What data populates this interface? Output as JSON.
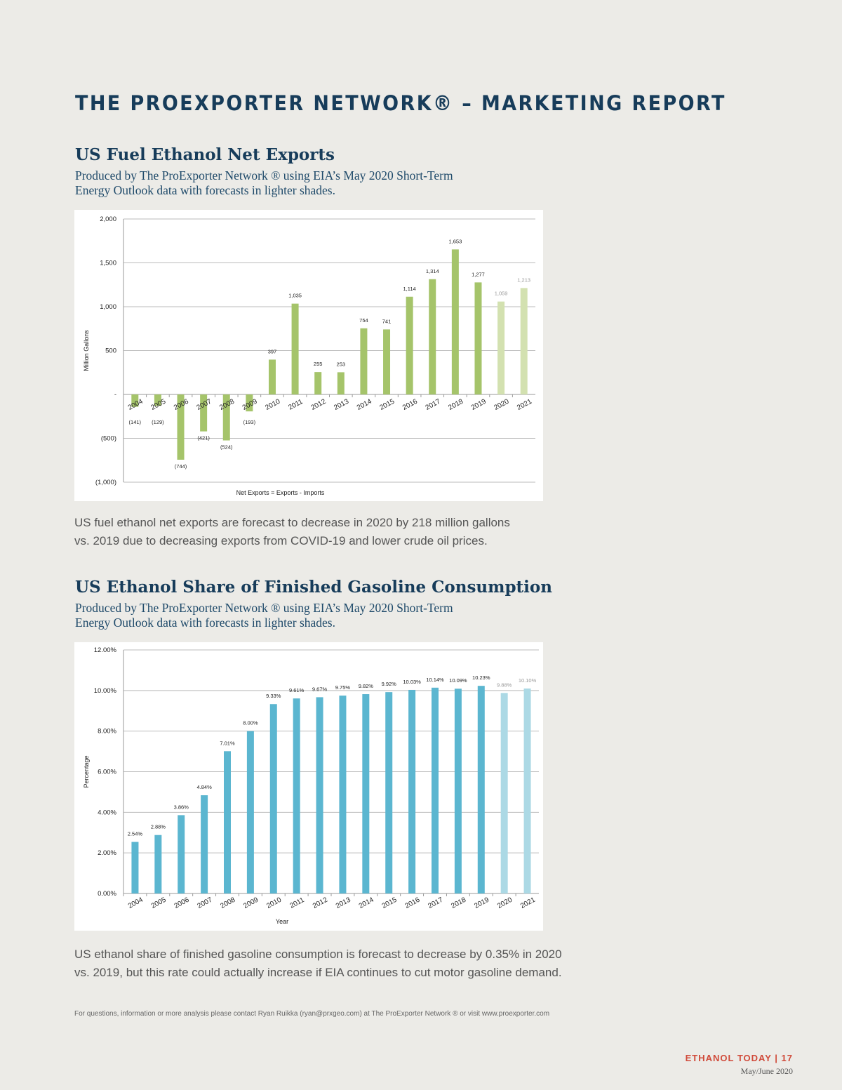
{
  "header": {
    "title": "THE PROEXPORTER NETWORK® – MARKETING REPORT"
  },
  "section1": {
    "title": "US Fuel Ethanol Net Exports",
    "subtitle_line1": "Produced by The ProExporter Network ® using EIA’s May 2020 Short-Term",
    "subtitle_line2": "Energy Outlook data with forecasts in lighter shades.",
    "note_line1": "US fuel ethanol net exports are forecast to decrease in 2020 by 218 million gallons",
    "note_line2": "vs. 2019 due to decreasing exports from COVID-19 and lower crude oil prices."
  },
  "section2": {
    "title": "US Ethanol Share of Finished Gasoline Consumption",
    "subtitle_line1": "Produced by The ProExporter Network ® using EIA’s May 2020 Short-Term",
    "subtitle_line2": "Energy Outlook data with forecasts in lighter shades.",
    "note_line1": "US ethanol share of finished gasoline consumption is forecast to decrease by 0.35% in 2020",
    "note_line2": "vs. 2019, but this rate could actually increase if EIA continues to cut motor gasoline demand."
  },
  "footer": {
    "contact": "For questions, information or more analysis please contact Ryan Ruikka (ryan@prxgeo.com) at The ProExporter Network ® or visit www.proexporter.com",
    "brand": "ETHANOL TODAY | 17",
    "issue": "May/June 2020"
  },
  "colors": {
    "green": "#a5c46a",
    "green_forecast": "#d3e1b0",
    "blue": "#5bb6d0",
    "blue_forecast": "#acd9e5",
    "title": "#173c5a",
    "brand": "#d04a3a"
  },
  "chart_data": [
    {
      "type": "bar",
      "title": "US Fuel Ethanol Net Exports",
      "xlabel": "Net Exports = Exports - Imports",
      "ylabel": "Million Gallons",
      "ylim": [
        -1000,
        2000
      ],
      "yticks": [
        2000,
        1500,
        1000,
        500,
        0,
        -500,
        -1000
      ],
      "ytick_labels": [
        "2,000",
        "1,500",
        "1,000",
        "500",
        "-",
        "(500)",
        "(1,000)"
      ],
      "categories": [
        "2004",
        "2005",
        "2006",
        "2007",
        "2008",
        "2009",
        "2010",
        "2011",
        "2012",
        "2013",
        "2014",
        "2015",
        "2016",
        "2017",
        "2018",
        "2019",
        "2020",
        "2021"
      ],
      "values": [
        -141,
        -129,
        -744,
        -421,
        -524,
        -193,
        397,
        1035,
        255,
        253,
        754,
        741,
        1114,
        1314,
        1653,
        1277,
        1059,
        1213
      ],
      "labels": [
        "(141)",
        "(129)",
        "(744)",
        "(421)",
        "(524)",
        "(193)",
        "397",
        "1,035",
        "255",
        "253",
        "754",
        "741",
        "1,114",
        "1,314",
        "1,653",
        "1,277",
        "1,059",
        "1,213"
      ],
      "forecast": [
        "2020",
        "2021"
      ],
      "grid": true
    },
    {
      "type": "bar",
      "title": "US Ethanol Share of Finished Gasoline Consumption",
      "xlabel": "Year",
      "ylabel": "Percentage",
      "ylim": [
        0,
        12
      ],
      "yticks": [
        12,
        10,
        8,
        6,
        4,
        2,
        0
      ],
      "ytick_labels": [
        "12.00%",
        "10.00%",
        "8.00%",
        "6.00%",
        "4.00%",
        "2.00%",
        "0.00%"
      ],
      "categories": [
        "2004",
        "2005",
        "2006",
        "2007",
        "2008",
        "2009",
        "2010",
        "2011",
        "2012",
        "2013",
        "2014",
        "2015",
        "2016",
        "2017",
        "2018",
        "2019",
        "2020",
        "2021"
      ],
      "values": [
        2.54,
        2.88,
        3.86,
        4.84,
        7.01,
        8.0,
        9.33,
        9.61,
        9.67,
        9.75,
        9.82,
        9.92,
        10.03,
        10.14,
        10.09,
        10.23,
        9.88,
        10.1
      ],
      "labels": [
        "2.54%",
        "2.88%",
        "3.86%",
        "4.84%",
        "7.01%",
        "8.00%",
        "9.33%",
        "9.61%",
        "9.67%",
        "9.75%",
        "9.82%",
        "9.92%",
        "10.03%",
        "10.14%",
        "10.09%",
        "10.23%",
        "9.88%",
        "10.10%"
      ],
      "forecast": [
        "2020",
        "2021"
      ],
      "grid": true
    }
  ]
}
